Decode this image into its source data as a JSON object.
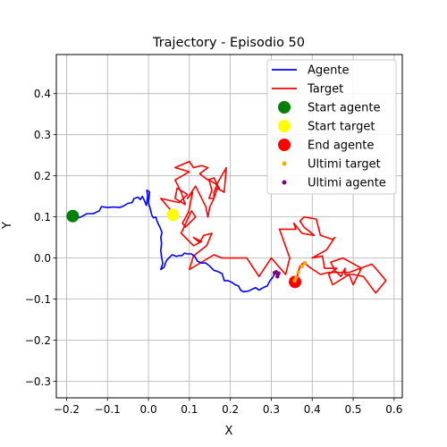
{
  "chart_data": {
    "type": "line",
    "title": "Trajectory - Episodio 50",
    "xlabel": "X",
    "ylabel": "Y",
    "xlim": [
      -0.225,
      0.62
    ],
    "ylim": [
      -0.34,
      0.495
    ],
    "x_ticks": [
      -0.2,
      -0.1,
      0.0,
      0.1,
      0.2,
      0.3,
      0.4,
      0.5,
      0.6
    ],
    "y_ticks": [
      -0.3,
      -0.2,
      -0.1,
      0.0,
      0.1,
      0.2,
      0.3,
      0.4
    ],
    "x_tick_labels": [
      "−0.2",
      "−0.1",
      "0.0",
      "0.1",
      "0.2",
      "0.3",
      "0.4",
      "0.5",
      "0.6"
    ],
    "y_tick_labels": [
      "−0.3",
      "−0.2",
      "−0.1",
      "0.0",
      "0.1",
      "0.2",
      "0.3",
      "0.4"
    ],
    "grid": true,
    "legend_position": "top-right",
    "legend": [
      {
        "label": "Agente",
        "kind": "line",
        "color": "#0000ff"
      },
      {
        "label": "Target",
        "kind": "line",
        "color": "#ff0000"
      },
      {
        "label": "Start agente",
        "kind": "marker",
        "color": "#008000",
        "size": "large"
      },
      {
        "label": "Start target",
        "kind": "marker",
        "color": "#ffff00",
        "size": "large"
      },
      {
        "label": "End agente",
        "kind": "marker",
        "color": "#ff0000",
        "size": "large"
      },
      {
        "label": "Ultimi target",
        "kind": "marker",
        "color": "#ffa500",
        "size": "small"
      },
      {
        "label": "Ultimi agente",
        "kind": "marker",
        "color": "#800080",
        "size": "small"
      }
    ],
    "series": [
      {
        "name": "Agente",
        "color": "#0000ff",
        "points": [
          [
            -0.19,
            0.1
          ],
          [
            -0.175,
            0.097
          ],
          [
            -0.165,
            0.1
          ],
          [
            -0.15,
            0.108
          ],
          [
            -0.135,
            0.108
          ],
          [
            -0.12,
            0.115
          ],
          [
            -0.115,
            0.125
          ],
          [
            -0.1,
            0.123
          ],
          [
            -0.085,
            0.124
          ],
          [
            -0.07,
            0.123
          ],
          [
            -0.06,
            0.127
          ],
          [
            -0.05,
            0.133
          ],
          [
            -0.04,
            0.135
          ],
          [
            -0.035,
            0.145
          ],
          [
            -0.025,
            0.148
          ],
          [
            -0.02,
            0.142
          ],
          [
            -0.015,
            0.15
          ],
          [
            -0.01,
            0.14
          ],
          [
            -0.005,
            0.128
          ],
          [
            -0.002,
            0.15
          ],
          [
            -0.004,
            0.165
          ],
          [
            0.0,
            0.163
          ],
          [
            0.003,
            0.16
          ],
          [
            0.0,
            0.135
          ],
          [
            0.005,
            0.118
          ],
          [
            0.008,
            0.105
          ],
          [
            0.012,
            0.098
          ],
          [
            0.018,
            0.1
          ],
          [
            0.022,
            0.087
          ],
          [
            0.028,
            0.075
          ],
          [
            0.033,
            0.062
          ],
          [
            0.03,
            0.05
          ],
          [
            0.032,
            0.035
          ],
          [
            0.03,
            0.018
          ],
          [
            0.032,
            0.003
          ],
          [
            0.035,
            -0.013
          ],
          [
            0.03,
            -0.028
          ],
          [
            0.038,
            -0.022
          ],
          [
            0.044,
            -0.006
          ],
          [
            0.05,
            0.0
          ],
          [
            0.058,
            0.008
          ],
          [
            0.068,
            0.004
          ],
          [
            0.075,
            0.006
          ],
          [
            0.082,
            0.006
          ],
          [
            0.088,
            0.012
          ],
          [
            0.095,
            0.01
          ],
          [
            0.105,
            0.01
          ],
          [
            0.113,
            0.004
          ],
          [
            0.12,
            -0.008
          ],
          [
            0.13,
            -0.012
          ],
          [
            0.14,
            -0.012
          ],
          [
            0.15,
            -0.02
          ],
          [
            0.16,
            -0.03
          ],
          [
            0.17,
            -0.033
          ],
          [
            0.18,
            -0.038
          ],
          [
            0.185,
            -0.055
          ],
          [
            0.195,
            -0.055
          ],
          [
            0.205,
            -0.06
          ],
          [
            0.212,
            -0.065
          ],
          [
            0.22,
            -0.068
          ],
          [
            0.225,
            -0.078
          ],
          [
            0.232,
            -0.082
          ],
          [
            0.245,
            -0.08
          ],
          [
            0.255,
            -0.075
          ],
          [
            0.262,
            -0.072
          ],
          [
            0.27,
            -0.078
          ],
          [
            0.28,
            -0.072
          ],
          [
            0.29,
            -0.068
          ],
          [
            0.297,
            -0.055
          ],
          [
            0.303,
            -0.048
          ],
          [
            0.308,
            -0.038
          ],
          [
            0.312,
            -0.035
          ],
          [
            0.316,
            -0.042
          ],
          [
            0.317,
            -0.035
          ],
          [
            0.314,
            -0.045
          ]
        ]
      },
      {
        "name": "Target",
        "color": "#ff0000",
        "points": [
          [
            0.06,
            0.11
          ],
          [
            0.03,
            0.145
          ],
          [
            0.075,
            0.135
          ],
          [
            0.095,
            0.155
          ],
          [
            0.07,
            0.17
          ],
          [
            0.065,
            0.145
          ],
          [
            0.09,
            0.13
          ],
          [
            0.08,
            0.16
          ],
          [
            0.065,
            0.19
          ],
          [
            0.1,
            0.21
          ],
          [
            0.065,
            0.22
          ],
          [
            0.1,
            0.235
          ],
          [
            0.11,
            0.22
          ],
          [
            0.13,
            0.225
          ],
          [
            0.145,
            0.22
          ],
          [
            0.125,
            0.205
          ],
          [
            0.145,
            0.19
          ],
          [
            0.16,
            0.195
          ],
          [
            0.175,
            0.165
          ],
          [
            0.165,
            0.18
          ],
          [
            0.148,
            0.19
          ],
          [
            0.155,
            0.165
          ],
          [
            0.148,
            0.145
          ],
          [
            0.16,
            0.145
          ],
          [
            0.168,
            0.17
          ],
          [
            0.185,
            0.16
          ],
          [
            0.19,
            0.22
          ],
          [
            0.17,
            0.185
          ],
          [
            0.16,
            0.16
          ],
          [
            0.16,
            0.145
          ],
          [
            0.15,
            0.125
          ],
          [
            0.145,
            0.1
          ],
          [
            0.14,
            0.125
          ],
          [
            0.115,
            0.175
          ],
          [
            0.095,
            0.145
          ],
          [
            0.108,
            0.16
          ],
          [
            0.098,
            0.112
          ],
          [
            0.083,
            0.085
          ],
          [
            0.09,
            0.075
          ],
          [
            0.115,
            0.1
          ],
          [
            0.105,
            0.115
          ],
          [
            0.08,
            0.06
          ],
          [
            0.11,
            0.03
          ],
          [
            0.13,
            0.04
          ],
          [
            0.11,
            0.05
          ],
          [
            0.125,
            0.038
          ],
          [
            0.135,
            0.055
          ],
          [
            0.155,
            0.06
          ],
          [
            0.142,
            0.03
          ],
          [
            0.11,
            0.005
          ],
          [
            0.1,
            -0.028
          ],
          [
            0.16,
            0.008
          ],
          [
            0.18,
            0.0
          ],
          [
            0.24,
            0.0
          ],
          [
            0.27,
            -0.045
          ],
          [
            0.3,
            0.0
          ],
          [
            0.335,
            -0.04
          ],
          [
            0.345,
            0.0
          ],
          [
            0.32,
            0.07
          ],
          [
            0.36,
            0.07
          ],
          [
            0.355,
            0.085
          ],
          [
            0.375,
            0.06
          ],
          [
            0.405,
            0.055
          ],
          [
            0.38,
            0.075
          ],
          [
            0.37,
            0.09
          ],
          [
            0.38,
            0.1
          ],
          [
            0.41,
            0.095
          ],
          [
            0.42,
            0.055
          ],
          [
            0.45,
            0.045
          ],
          [
            0.455,
            0.05
          ],
          [
            0.435,
            0.02
          ],
          [
            0.4,
            0.0
          ],
          [
            0.425,
            0.005
          ],
          [
            0.43,
            -0.025
          ],
          [
            0.46,
            -0.025
          ],
          [
            0.44,
            -0.04
          ],
          [
            0.45,
            -0.065
          ],
          [
            0.49,
            -0.04
          ],
          [
            0.5,
            -0.065
          ],
          [
            0.52,
            -0.025
          ],
          [
            0.475,
            0.0
          ],
          [
            0.445,
            -0.01
          ],
          [
            0.455,
            -0.03
          ],
          [
            0.47,
            -0.045
          ],
          [
            0.48,
            -0.025
          ],
          [
            0.48,
            -0.04
          ],
          [
            0.5,
            -0.04
          ],
          [
            0.525,
            -0.045
          ],
          [
            0.555,
            -0.085
          ],
          [
            0.58,
            -0.055
          ],
          [
            0.555,
            -0.025
          ],
          [
            0.545,
            -0.015
          ],
          [
            0.49,
            -0.035
          ],
          [
            0.47,
            -0.035
          ],
          [
            0.44,
            -0.035
          ],
          [
            0.42,
            -0.04
          ],
          [
            0.39,
            -0.02
          ],
          [
            0.38,
            -0.01
          ],
          [
            0.37,
            -0.02
          ],
          [
            0.36,
            -0.055
          ]
        ]
      }
    ],
    "markers": {
      "start_agente": {
        "x": -0.185,
        "y": 0.102,
        "color": "#008000"
      },
      "start_target": {
        "x": 0.06,
        "y": 0.105,
        "color": "#ffff00"
      },
      "end_agente": {
        "x": 0.358,
        "y": -0.058,
        "color": "#ff0000"
      },
      "ultimi_target": {
        "color": "#ffa500",
        "points": [
          [
            0.382,
            -0.012
          ],
          [
            0.375,
            -0.02
          ],
          [
            0.366,
            -0.035
          ],
          [
            0.36,
            -0.048
          ],
          [
            0.357,
            -0.055
          ]
        ]
      },
      "ultimi_agente": {
        "color": "#800080",
        "points": [
          [
            0.308,
            -0.036
          ],
          [
            0.312,
            -0.034
          ],
          [
            0.316,
            -0.04
          ],
          [
            0.315,
            -0.045
          ],
          [
            0.318,
            -0.037
          ]
        ]
      }
    }
  }
}
